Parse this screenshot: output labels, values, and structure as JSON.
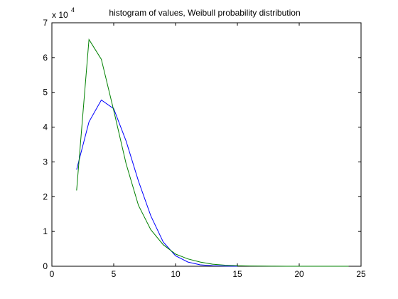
{
  "chart_data": {
    "type": "line",
    "title": "histogram of values, Weibull probability distribution",
    "xlabel": "",
    "ylabel": "",
    "y_multiplier": {
      "base": "x 10",
      "exponent": "4"
    },
    "xlim": [
      0,
      25
    ],
    "ylim": [
      0,
      70000
    ],
    "x_ticks": [
      0,
      5,
      10,
      15,
      20,
      25
    ],
    "y_ticks": [
      0,
      10000,
      20000,
      30000,
      40000,
      50000,
      60000,
      70000
    ],
    "x_tick_labels": [
      "0",
      "5",
      "10",
      "15",
      "20",
      "25"
    ],
    "y_tick_labels": [
      "0",
      "1",
      "2",
      "3",
      "4",
      "5",
      "6",
      "7"
    ],
    "grid": false,
    "series": [
      {
        "color": "#0000ff",
        "x": [
          2,
          3,
          4,
          5,
          6,
          7,
          8,
          9,
          10,
          11,
          12,
          13,
          14,
          15
        ],
        "y": [
          27800,
          41500,
          47800,
          45300,
          36000,
          24500,
          14500,
          7000,
          3000,
          1200,
          400,
          150,
          50,
          0
        ]
      },
      {
        "color": "#008000",
        "x": [
          2,
          3,
          4,
          5,
          6,
          7,
          8,
          9,
          10,
          11,
          12,
          13,
          14,
          15,
          16,
          17,
          18,
          19,
          20,
          21,
          22,
          23,
          24
        ],
        "y": [
          21800,
          65200,
          59500,
          44800,
          29500,
          17500,
          10500,
          6200,
          3500,
          2100,
          1200,
          600,
          300,
          150,
          80,
          40,
          20,
          10,
          5,
          0,
          0,
          0,
          0
        ]
      }
    ]
  }
}
